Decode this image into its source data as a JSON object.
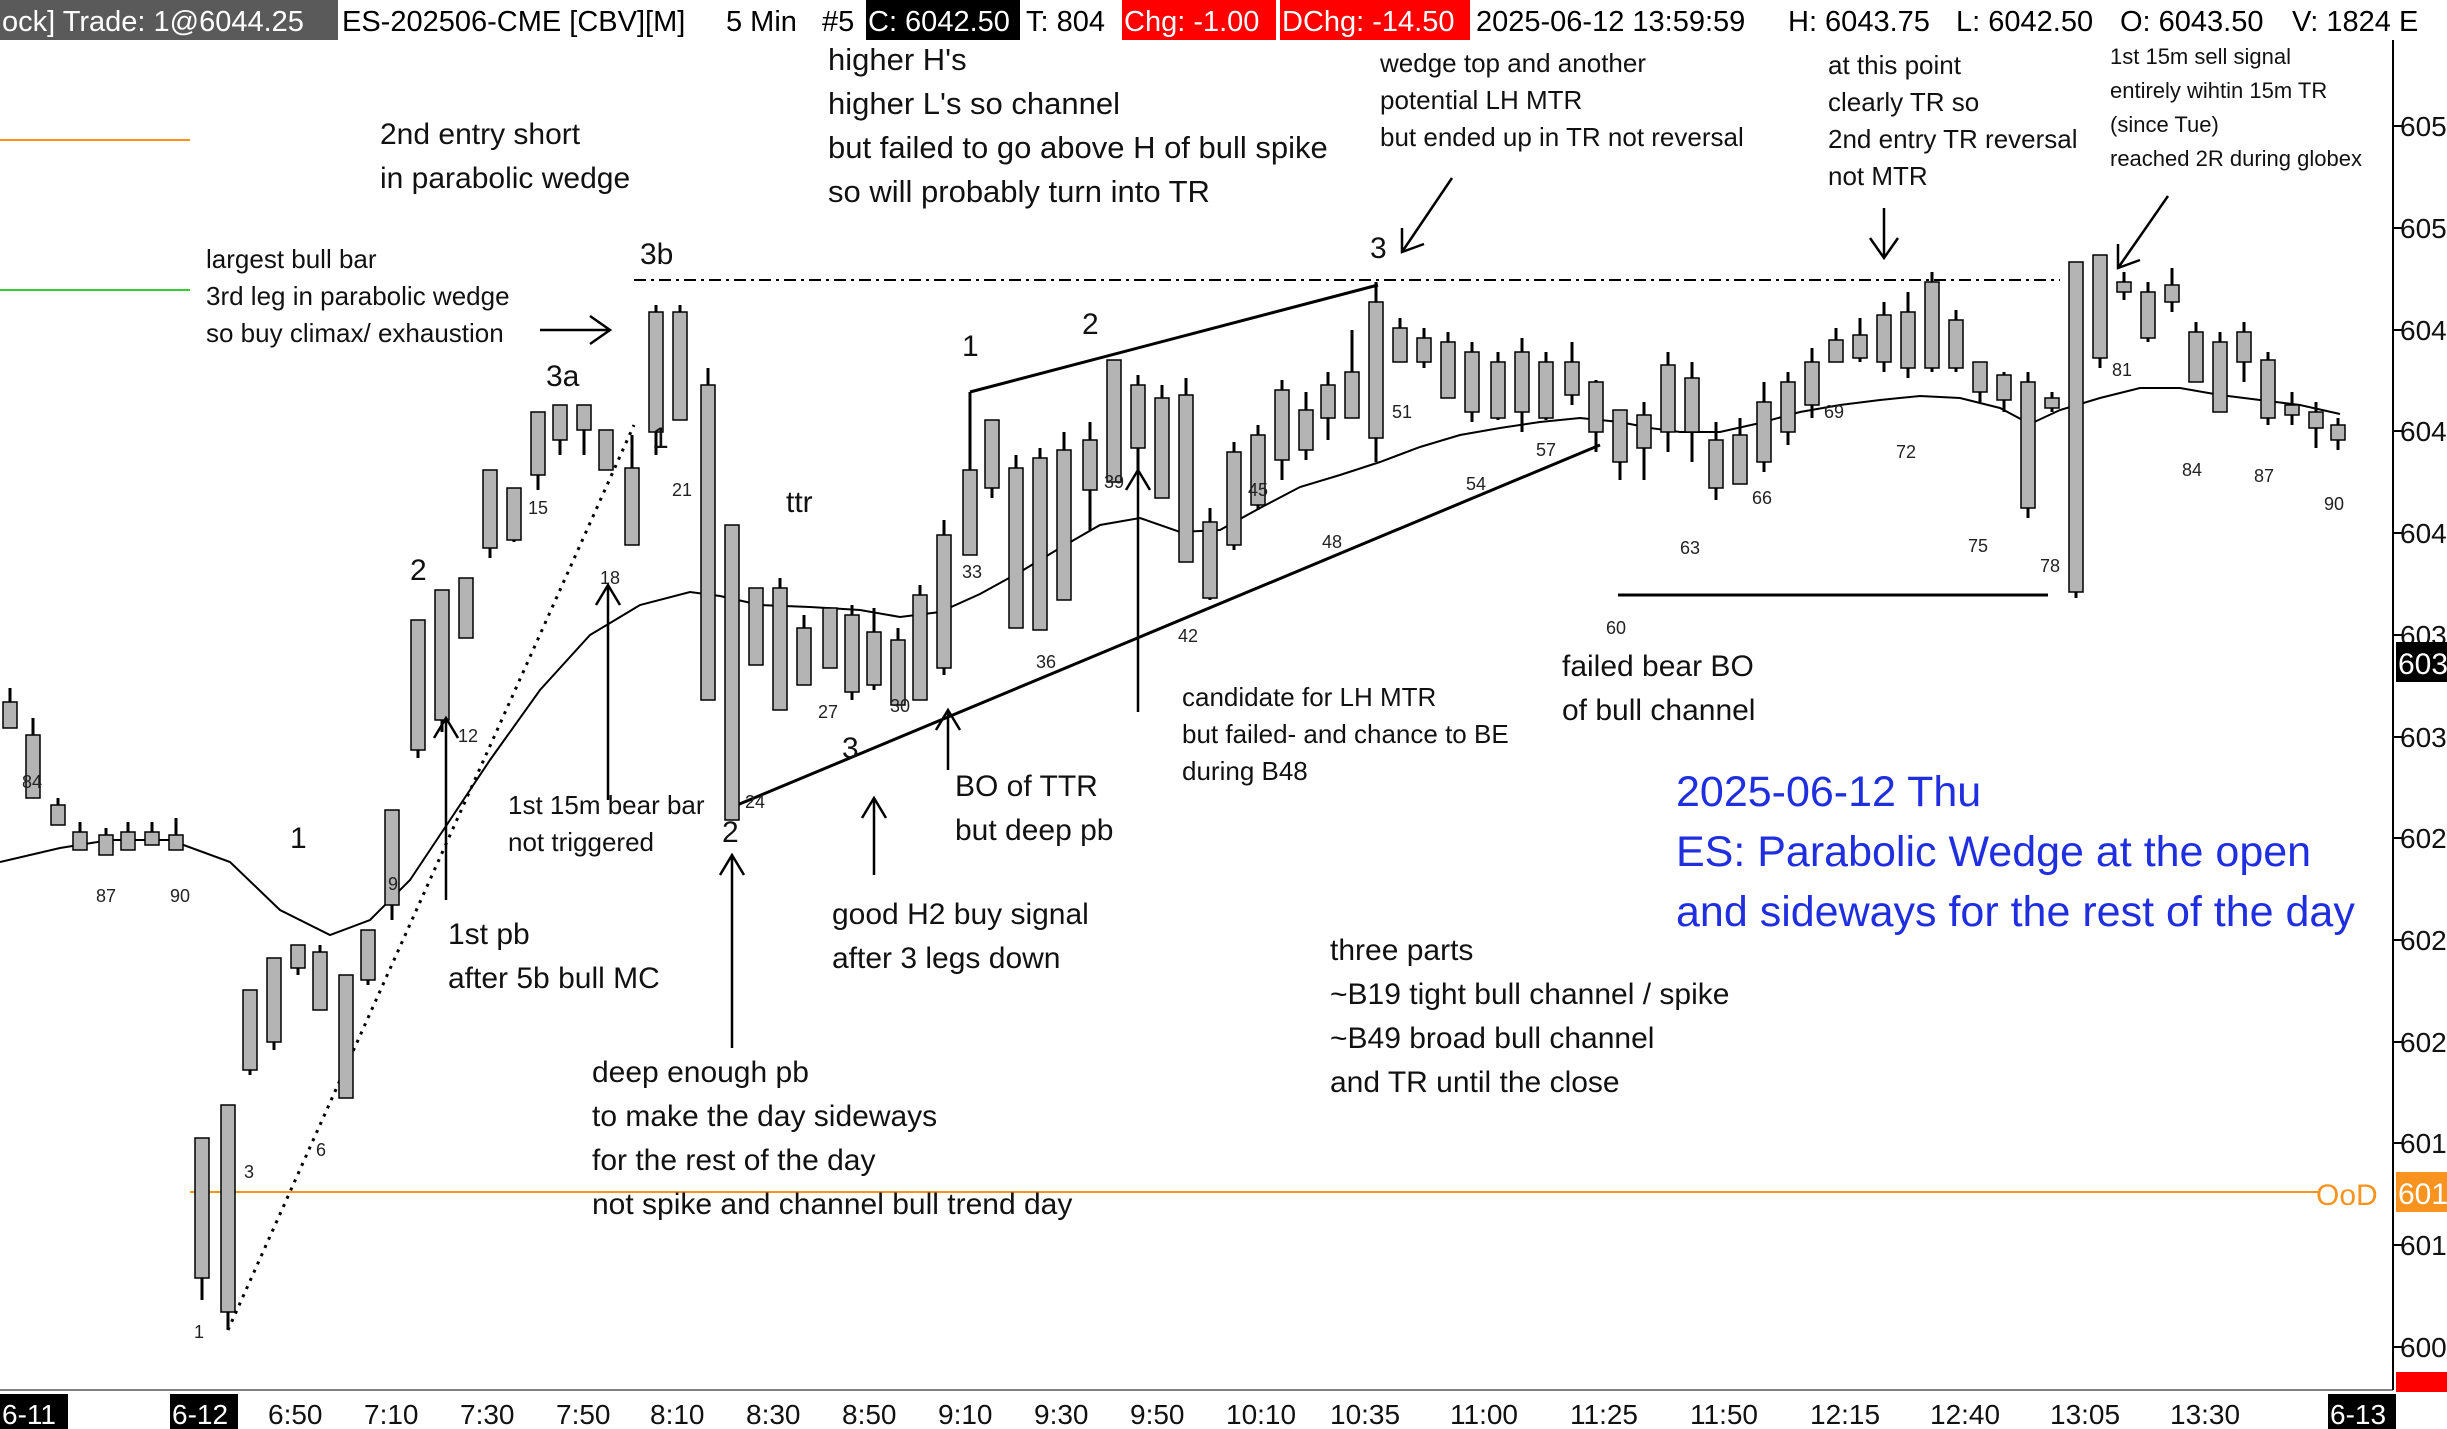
{
  "header": {
    "prefix": "ock] Trade: 1@6044.25",
    "symbol": "ES-202506-CME [CBV][M]",
    "timeframe": "5 Min",
    "bar": "#5",
    "close": "C: 6042.50",
    "ticks": "T: 804",
    "chg": "Chg: -1.00",
    "dchg": "DChg: -14.50",
    "datetime": "2025-06-12 13:59:59",
    "high": "H: 6043.75",
    "low": "L: 6042.50",
    "open": "O: 6043.50",
    "volume": "V: 1824 E"
  },
  "colors": {
    "header_bg": "#5a5a5a",
    "close_bg": "#000000",
    "chg_bg": "#ff0000",
    "title": "#1f2fe0",
    "ood_line": "#f7931e",
    "green_line": "#33cc33",
    "bar_fill": "#b4b4b4"
  },
  "title_lines": [
    "2025-06-12 Thu",
    "ES: Parabolic Wedge at the open",
    "and sideways for the rest of the day"
  ],
  "right_axis": {
    "labels": [
      "605",
      "605",
      "604",
      "604",
      "604",
      "603",
      "603",
      "602",
      "602",
      "602",
      "601",
      "601",
      "600"
    ],
    "current_price_tag": "603",
    "ood_label": "OoD",
    "ood_tag": "601",
    "bottom_tag": "600"
  },
  "chart_data": {
    "type": "candlestick",
    "symbol": "ES-202506-CME",
    "interval": "5 Min",
    "x_tick_labels": [
      "6-11",
      "6-12",
      "6:50",
      "7:10",
      "7:30",
      "7:50",
      "8:10",
      "8:30",
      "8:50",
      "9:10",
      "9:30",
      "9:50",
      "10:10",
      "10:35",
      "11:00",
      "11:25",
      "11:50",
      "12:15",
      "12:40",
      "13:05",
      "13:30",
      "6-13"
    ],
    "ema_color": "#000000",
    "levels": [
      {
        "name": "OoD",
        "color": "#f7931e"
      }
    ],
    "bar_labels": [
      {
        "bar": 84,
        "text": "84"
      },
      {
        "bar": 87,
        "text": "87"
      },
      {
        "bar": 90,
        "text": "90"
      },
      {
        "bar": 1,
        "text": "1"
      },
      {
        "bar": 3,
        "text": "3"
      },
      {
        "bar": 6,
        "text": "6"
      },
      {
        "bar": 9,
        "text": "9"
      },
      {
        "bar": 12,
        "text": "12"
      },
      {
        "bar": 15,
        "text": "15"
      },
      {
        "bar": 18,
        "text": "18"
      },
      {
        "bar": 21,
        "text": "21"
      },
      {
        "bar": 24,
        "text": "24"
      },
      {
        "bar": 27,
        "text": "27"
      },
      {
        "bar": 30,
        "text": "30"
      },
      {
        "bar": 33,
        "text": "33"
      },
      {
        "bar": 36,
        "text": "36"
      },
      {
        "bar": 39,
        "text": "39"
      },
      {
        "bar": 42,
        "text": "42"
      },
      {
        "bar": 45,
        "text": "45"
      },
      {
        "bar": 48,
        "text": "48"
      },
      {
        "bar": 51,
        "text": "51"
      },
      {
        "bar": 54,
        "text": "54"
      },
      {
        "bar": 57,
        "text": "57"
      },
      {
        "bar": 60,
        "text": "60"
      },
      {
        "bar": 63,
        "text": "63"
      },
      {
        "bar": 66,
        "text": "66"
      },
      {
        "bar": 69,
        "text": "69"
      },
      {
        "bar": 72,
        "text": "72"
      },
      {
        "bar": 75,
        "text": "75"
      },
      {
        "bar": 78,
        "text": "78"
      },
      {
        "bar": 81,
        "text": "81"
      },
      {
        "bar": 84,
        "text": "84"
      },
      {
        "bar": 87,
        "text": "87"
      },
      {
        "bar": 90,
        "text": "90"
      }
    ]
  },
  "annotations": {
    "parabolic_wedge": [
      "2nd entry short",
      "in parabolic wedge"
    ],
    "largest_bull": [
      "largest bull bar",
      "3rd leg in parabolic wedge",
      "so buy climax/ exhaustion"
    ],
    "higher_hs": [
      "higher H's",
      "higher L's so channel",
      "but failed to go above H of bull spike",
      "so will probably turn into TR"
    ],
    "wedge_top": [
      "wedge top and another",
      "potential LH MTR",
      "but ended up in TR not reversal"
    ],
    "at_this_point": [
      "at this point",
      "clearly TR so",
      "2nd entry TR reversal",
      "not MTR"
    ],
    "sell_signal": [
      "1st 15m sell signal",
      "entirely wihtin 15m TR",
      "(since Tue)",
      "reached 2R during globex"
    ],
    "first_bear": [
      "1st 15m bear bar",
      "not triggered"
    ],
    "first_pb": [
      "1st pb",
      "after 5b bull MC"
    ],
    "bo_ttr": [
      "BO of TTR",
      "but deep pb"
    ],
    "h2_buy": [
      "good H2 buy signal",
      "after 3 legs down"
    ],
    "lh_mtr": [
      "candidate for LH MTR",
      "but failed- and chance to BE",
      "during B48"
    ],
    "failed_bear": [
      "failed bear BO",
      "of bull channel"
    ],
    "deep_pb": [
      "deep enough pb",
      "to make the day sideways",
      "for the rest of the day",
      "not spike and channel bull trend day"
    ],
    "three_parts": [
      "three parts",
      "~B19 tight bull channel / spike",
      "~B49 broad bull channel",
      "and TR until the close"
    ],
    "ttr": "ttr",
    "leg_1a": "1",
    "leg_2a": "2",
    "leg_3a": "3a",
    "leg_3b": "3b",
    "leg_1b": "1",
    "leg_2b": "2",
    "leg_3c": "3",
    "pb_2": "2",
    "pb_3": "3",
    "pb_1": "1"
  }
}
